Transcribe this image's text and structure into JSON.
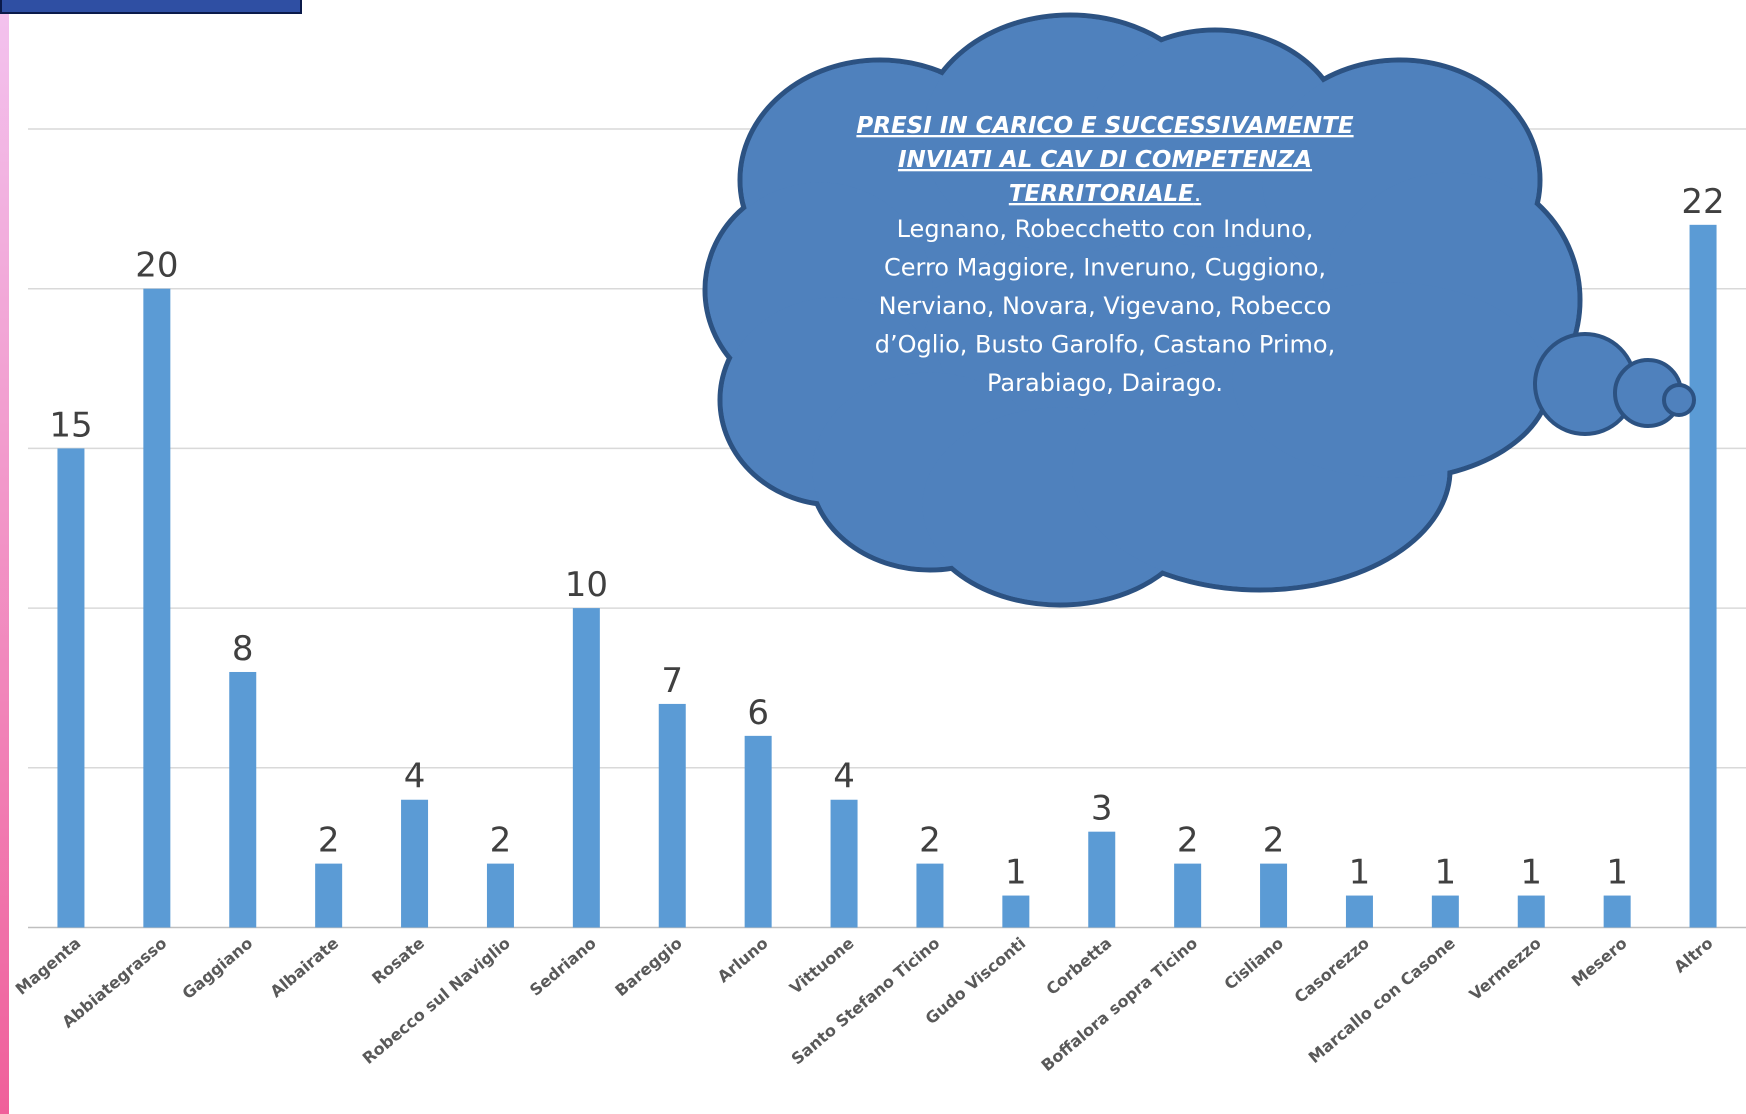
{
  "chart_data": {
    "type": "bar",
    "categories": [
      "Magenta",
      "Abbiategrasso",
      "Gaggiano",
      "Albairate",
      "Rosate",
      "Robecco sul Naviglio",
      "Sedriano",
      "Bareggio",
      "Arluno",
      "Vittuone",
      "Santo Stefano Ticino",
      "Gudo Visconti",
      "Corbetta",
      "Boffalora sopra Ticino",
      "Cisliano",
      "Casorezzo",
      "Marcallo con Casone",
      "Vermezzo",
      "Mesero",
      "Altro"
    ],
    "values": [
      15,
      20,
      8,
      2,
      4,
      2,
      10,
      7,
      6,
      4,
      2,
      1,
      3,
      2,
      2,
      1,
      1,
      1,
      1,
      22
    ],
    "color": "#5b9bd5",
    "ylim": [
      0,
      25
    ],
    "yticks": [
      0,
      5,
      10,
      15,
      20,
      25
    ],
    "grid": true,
    "annotation": {
      "title_lines": [
        "PRESI IN CARICO E SUCCESSIVAMENTE",
        "INVIATI AL CAV DI COMPETENZA",
        "TERRITORIALE"
      ],
      "title_end": ".",
      "lines": [
        "Legnano, Robecchetto con Induno,",
        "Cerro Maggiore, Inveruno, Cuggiono,",
        "Nerviano, Novara, Vigevano, Robecco",
        "d’Oglio, Busto Garolfo, Castano Primo,",
        "Parabiago, Dairago."
      ]
    }
  }
}
